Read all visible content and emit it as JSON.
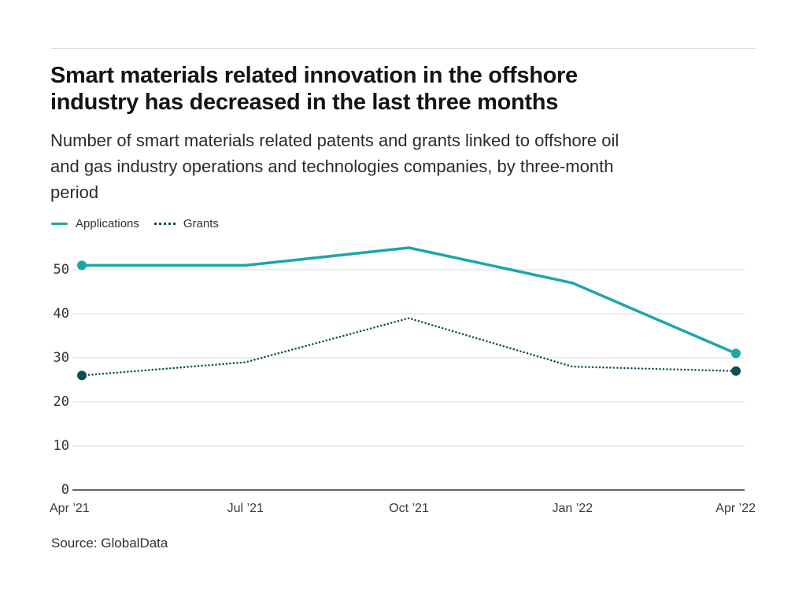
{
  "page": {
    "title": "Smart materials related innovation in the offshore industry has decreased in the last three months",
    "title_lines": [
      "Smart materials related innovation in the offshore",
      "industry has decreased in the last three months"
    ],
    "subtitle_lines": [
      "Number of smart materials related patents and grants linked to offshore oil",
      "and gas industry operations and technologies companies, by three-month",
      "period"
    ],
    "source": "Source: GlobalData"
  },
  "legend": {
    "items": [
      {
        "label": "Applications",
        "color": "#1ba6a8",
        "line_style": "solid"
      },
      {
        "label": "Grants",
        "color": "#0d4e52",
        "line_style": "dotted"
      }
    ]
  },
  "chart_data": {
    "type": "line",
    "title": "Smart materials related innovation in the offshore industry has decreased in the last three months",
    "subtitle": "Number of smart materials related patents and grants linked to offshore oil and gas industry operations and technologies companies, by three-month period",
    "categories": [
      "Apr ’21",
      "Jul ’21",
      "Oct ’21",
      "Jan ’22",
      "Apr ’22"
    ],
    "series": [
      {
        "name": "Applications",
        "values": [
          51,
          51,
          55,
          47,
          31
        ],
        "color": "#1ba6a8",
        "line_style": "solid"
      },
      {
        "name": "Grants",
        "values": [
          26,
          29,
          39,
          28,
          27
        ],
        "color": "#0d4e52",
        "line_style": "dotted"
      }
    ],
    "xlabel": "",
    "ylabel": "",
    "ylim": [
      0,
      57
    ],
    "yticks": [
      0,
      10,
      20,
      30,
      40,
      50
    ],
    "grid": true,
    "legend_position": "top-left",
    "endpoint_markers": true,
    "source": "Source: GlobalData"
  },
  "colors": {
    "accent_teal": "#1ba6a8",
    "dark_teal": "#0d4e52",
    "gridline": "#e7e7e7",
    "zero_axis": "#4f4f4f",
    "top_rule": "#dcdcdc"
  }
}
